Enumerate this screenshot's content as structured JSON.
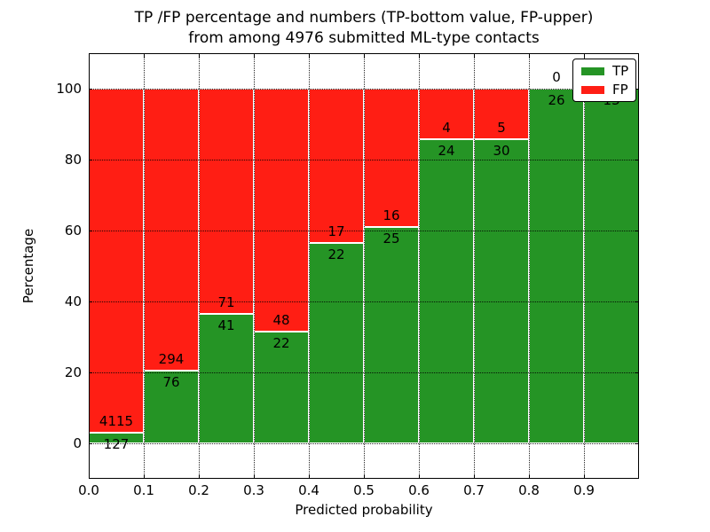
{
  "title": {
    "line1": "TP /FP percentage and numbers (TP-bottom value, FP-upper)",
    "line2": "from among 4976 submitted ML-type contacts"
  },
  "axes": {
    "xlabel": "Predicted probability",
    "ylabel": "Percentage",
    "x_tick_labels": [
      "0.0",
      "0.1",
      "0.2",
      "0.3",
      "0.4",
      "0.5",
      "0.6",
      "0.7",
      "0.8",
      "0.9"
    ],
    "y_tick_labels": [
      "0",
      "20",
      "40",
      "60",
      "80",
      "100"
    ]
  },
  "legend": {
    "items": [
      {
        "label": "TP",
        "color": "#259425"
      },
      {
        "label": "FP",
        "color": "#FF1E14"
      }
    ]
  },
  "colors": {
    "tp": "#259425",
    "fp": "#FF1E14",
    "bar_edge": "#FFFFFF",
    "grid": "#000000",
    "frame": "#000000",
    "background": "#FFFFFF",
    "text": "#000000"
  },
  "chart_data": {
    "type": "bar",
    "stacked": true,
    "normalized": "each bar scaled to 100%, counts shown as labels",
    "title": "TP /FP percentage and numbers (TP-bottom value, FP-upper) from among 4976 submitted ML-type contacts",
    "xlabel": "Predicted probability",
    "ylabel": "Percentage",
    "bin_edges": [
      0.0,
      0.1,
      0.2,
      0.3,
      0.4,
      0.5,
      0.6,
      0.7,
      0.8,
      0.9,
      1.0
    ],
    "series": [
      {
        "name": "TP",
        "color": "#259425",
        "counts": [
          127,
          76,
          41,
          22,
          22,
          25,
          24,
          30,
          26,
          13
        ]
      },
      {
        "name": "FP",
        "color": "#FF1E14",
        "counts": [
          4115,
          294,
          71,
          48,
          17,
          16,
          4,
          5,
          0,
          0
        ]
      }
    ],
    "tp_percent_per_bin": [
      2.99,
      20.54,
      36.61,
      31.43,
      56.41,
      60.98,
      85.71,
      85.71,
      100.0,
      100.0
    ],
    "total_contacts": 4976,
    "xlim": [
      0.0,
      1.0
    ],
    "ylim": [
      -10,
      110
    ],
    "x_ticks": [
      0.0,
      0.1,
      0.2,
      0.3,
      0.4,
      0.5,
      0.6,
      0.7,
      0.8,
      0.9
    ],
    "y_ticks": [
      0,
      20,
      40,
      60,
      80,
      100
    ],
    "grid": "dotted, both axes, drawn above bars",
    "legend_position": "upper right"
  }
}
